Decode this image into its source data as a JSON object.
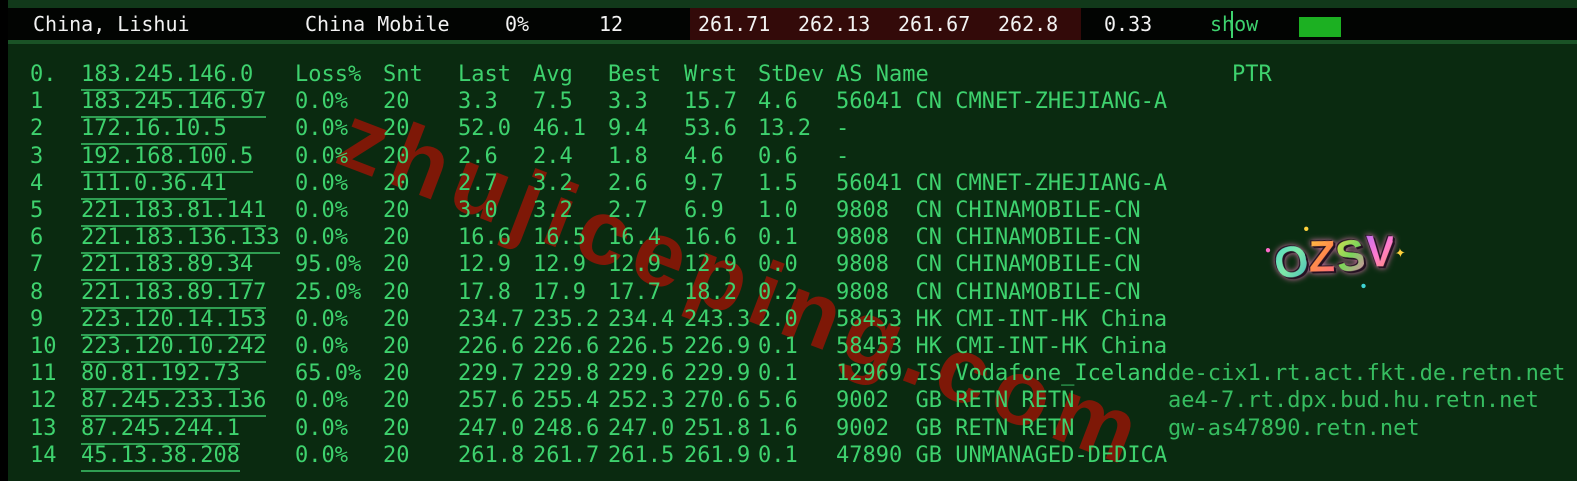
{
  "topbar": {
    "location": "China, Lishui",
    "provider": "China Mobile",
    "loss_pct": "0%",
    "hop_count": "12",
    "latency_values": [
      "261.71",
      "262.13",
      "261.67",
      "262.8"
    ],
    "stdev": "0.33",
    "show_label": "show"
  },
  "table": {
    "header": {
      "hop": "0.",
      "ip": "183.245.146.0",
      "loss": "Loss%",
      "snt": "Snt",
      "last": "Last",
      "avg": "Avg",
      "best": "Best",
      "wrst": "Wrst",
      "stdev": "StDev",
      "as_name": "AS Name",
      "ptr": "PTR"
    },
    "rows": [
      {
        "hop": "1",
        "ip": "183.245.146.97",
        "loss": "0.0%",
        "snt": "20",
        "last": "3.3",
        "avg": "7.5",
        "best": "3.3",
        "wrst": "15.7",
        "stdev": "4.6",
        "as_name": "56041 CN CMNET-ZHEJIANG-A",
        "ptr": ""
      },
      {
        "hop": "2",
        "ip": "172.16.10.5",
        "loss": "0.0%",
        "snt": "20",
        "last": "52.0",
        "avg": "46.1",
        "best": "9.4",
        "wrst": "53.6",
        "stdev": "13.2",
        "as_name": "-",
        "ptr": ""
      },
      {
        "hop": "3",
        "ip": "192.168.100.5",
        "loss": "0.0%",
        "snt": "20",
        "last": "2.6",
        "avg": "2.4",
        "best": "1.8",
        "wrst": "4.6",
        "stdev": "0.6",
        "as_name": "-",
        "ptr": ""
      },
      {
        "hop": "4",
        "ip": "111.0.36.41",
        "loss": "0.0%",
        "snt": "20",
        "last": "2.7",
        "avg": "3.2",
        "best": "2.6",
        "wrst": "9.7",
        "stdev": "1.5",
        "as_name": "56041 CN CMNET-ZHEJIANG-A",
        "ptr": ""
      },
      {
        "hop": "5",
        "ip": "221.183.81.141",
        "loss": "0.0%",
        "snt": "20",
        "last": "3.0",
        "avg": "3.2",
        "best": "2.7",
        "wrst": "6.9",
        "stdev": "1.0",
        "as_name": "9808  CN CHINAMOBILE-CN",
        "ptr": ""
      },
      {
        "hop": "6",
        "ip": "221.183.136.133",
        "loss": "0.0%",
        "snt": "20",
        "last": "16.6",
        "avg": "16.5",
        "best": "16.4",
        "wrst": "16.6",
        "stdev": "0.1",
        "as_name": "9808  CN CHINAMOBILE-CN",
        "ptr": ""
      },
      {
        "hop": "7",
        "ip": "221.183.89.34",
        "loss": "95.0%",
        "snt": "20",
        "last": "12.9",
        "avg": "12.9",
        "best": "12.9",
        "wrst": "12.9",
        "stdev": "0.0",
        "as_name": "9808  CN CHINAMOBILE-CN",
        "ptr": ""
      },
      {
        "hop": "8",
        "ip": "221.183.89.177",
        "loss": "25.0%",
        "snt": "20",
        "last": "17.8",
        "avg": "17.9",
        "best": "17.7",
        "wrst": "18.2",
        "stdev": "0.2",
        "as_name": "9808  CN CHINAMOBILE-CN",
        "ptr": ""
      },
      {
        "hop": "9",
        "ip": "223.120.14.153",
        "loss": "0.0%",
        "snt": "20",
        "last": "234.7",
        "avg": "235.2",
        "best": "234.4",
        "wrst": "243.3",
        "stdev": "2.0",
        "as_name": "58453 HK CMI-INT-HK China",
        "ptr": ""
      },
      {
        "hop": "10",
        "ip": "223.120.10.242",
        "loss": "0.0%",
        "snt": "20",
        "last": "226.6",
        "avg": "226.6",
        "best": "226.5",
        "wrst": "226.9",
        "stdev": "0.1",
        "as_name": "58453 HK CMI-INT-HK China",
        "ptr": ""
      },
      {
        "hop": "11",
        "ip": "80.81.192.73",
        "loss": "65.0%",
        "snt": "20",
        "last": "229.7",
        "avg": "229.8",
        "best": "229.6",
        "wrst": "229.9",
        "stdev": "0.1",
        "as_name": "12969 IS Vodafone_Iceland",
        "ptr": "de-cix1.rt.act.fkt.de.retn.net"
      },
      {
        "hop": "12",
        "ip": "87.245.233.136",
        "loss": "0.0%",
        "snt": "20",
        "last": "257.6",
        "avg": "255.4",
        "best": "252.3",
        "wrst": "270.6",
        "stdev": "5.6",
        "as_name": "9002  GB RETN RETN",
        "ptr": "ae4-7.rt.dpx.bud.hu.retn.net"
      },
      {
        "hop": "13",
        "ip": "87.245.244.1",
        "loss": "0.0%",
        "snt": "20",
        "last": "247.0",
        "avg": "248.6",
        "best": "247.0",
        "wrst": "251.8",
        "stdev": "1.6",
        "as_name": "9002  GB RETN RETN",
        "ptr": "gw-as47890.retn.net"
      },
      {
        "hop": "14",
        "ip": "45.13.38.208",
        "loss": "0.0%",
        "snt": "20",
        "last": "261.8",
        "avg": "261.7",
        "best": "261.5",
        "wrst": "261.9",
        "stdev": "0.1",
        "as_name": "47890 GB UNMANAGED-DEDICA",
        "ptr": ""
      }
    ]
  },
  "watermark_text": "zhujiceping.com",
  "sticker": {
    "letters": [
      "O",
      "Z",
      "S",
      "V"
    ]
  },
  "colors": {
    "bg": "#0a2a10",
    "topstrip": "#11391a",
    "bar-black": "#020402",
    "red-bg": "#330a09",
    "white": "#f2f2f2",
    "text-green": "#3ed26e",
    "ptr-green": "#36bd60",
    "underline": "#2f9e52",
    "button-green": "#1cb022",
    "divider": "#1a5226",
    "watermark-red": "#8f1606"
  }
}
